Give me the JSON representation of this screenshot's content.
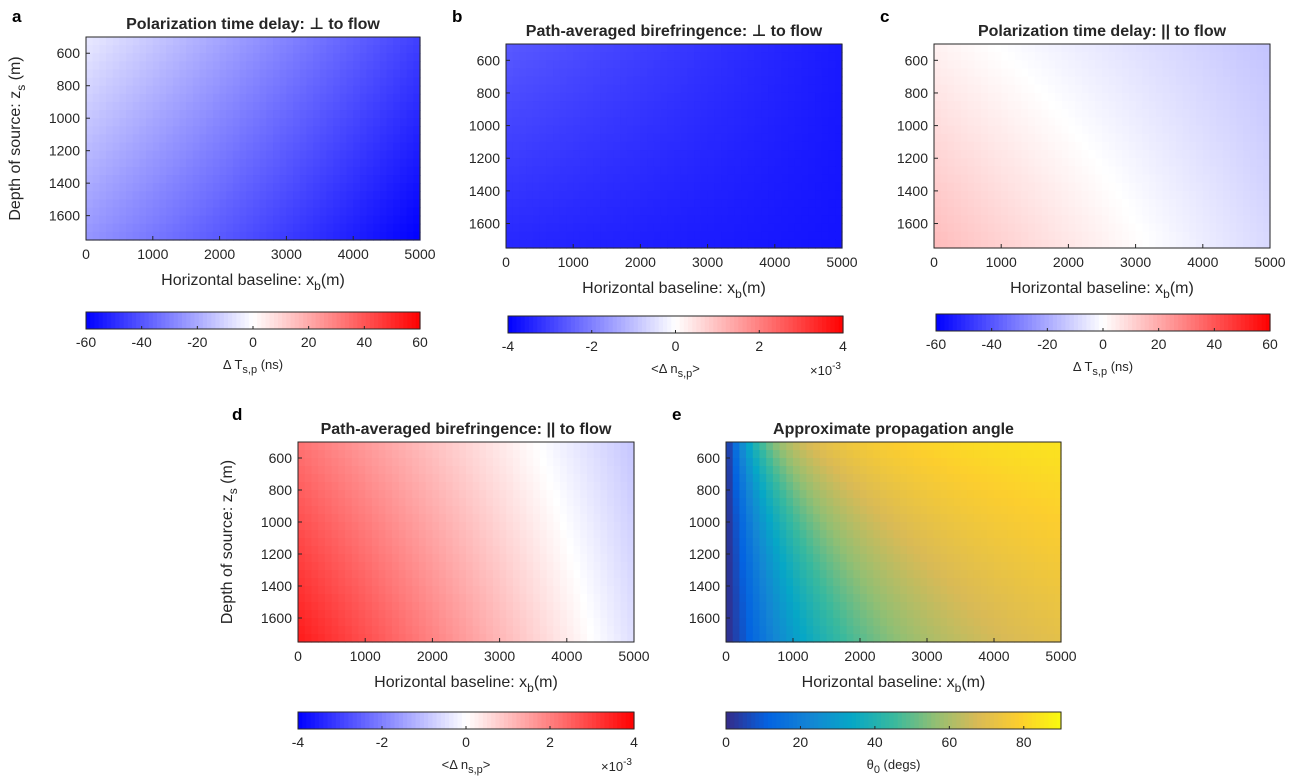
{
  "colors": {
    "diverging_neg": "#0000ff",
    "diverging_mid": "#ffffff",
    "diverging_pos": "#ff0000",
    "parula": [
      "#352a87",
      "#0363e1",
      "#1485d4",
      "#06a7c6",
      "#38b99e",
      "#92bf73",
      "#d9ba56",
      "#fcce2e",
      "#f9fb0e"
    ]
  },
  "chart_data": [
    {
      "panel": "a",
      "type": "heatmap",
      "title": "Polarization time delay: ⊥ to flow",
      "xlabel_main": "Horizontal baseline: x",
      "xlabel_sub": "b",
      "xlabel_tail": "(m)",
      "ylabel_main": "Depth of source: z",
      "ylabel_sub": "s",
      "ylabel_tail": " (m)",
      "xlim": [
        0,
        5000
      ],
      "ylim": [
        500,
        1750
      ],
      "xticks": [
        0,
        1000,
        2000,
        3000,
        4000,
        5000
      ],
      "yticks": [
        600,
        800,
        1000,
        1200,
        1400,
        1600
      ],
      "colormap": "diverging",
      "clim": [
        -60,
        60
      ],
      "cticks": [
        -60,
        -40,
        -20,
        0,
        20,
        40,
        60
      ],
      "colorbar_label": "Δ T",
      "colorbar_label_sub": "s,p",
      "colorbar_label_tail": " (ns)",
      "colorbar_exponent": "",
      "field": {
        "corner_values": {
          "x0_ytop": -5,
          "x5000_ytop": -45,
          "x0_ybottom": -25,
          "x5000_ybottom": -60
        }
      }
    },
    {
      "panel": "b",
      "type": "heatmap",
      "title": "Path-averaged birefringence: ⊥ to flow",
      "xlabel_main": "Horizontal baseline: x",
      "xlabel_sub": "b",
      "xlabel_tail": "(m)",
      "ylabel_main": "",
      "ylabel_sub": "",
      "ylabel_tail": "",
      "xlim": [
        0,
        5000
      ],
      "ylim": [
        500,
        1750
      ],
      "xticks": [
        0,
        1000,
        2000,
        3000,
        4000,
        5000
      ],
      "yticks": [
        600,
        800,
        1000,
        1200,
        1400,
        1600
      ],
      "colormap": "diverging",
      "clim": [
        -4,
        4
      ],
      "cticks": [
        -4,
        -2,
        0,
        2,
        4
      ],
      "colorbar_label": "<Δ n",
      "colorbar_label_sub": "s,p",
      "colorbar_label_tail": ">",
      "colorbar_exponent": "×10",
      "colorbar_exponent_sup": "-3",
      "field": {
        "corner_values": {
          "x0_ytop": -2.6,
          "x5000_ytop": -3.6,
          "x0_ybottom": -3.4,
          "x5000_ybottom": -3.7
        }
      }
    },
    {
      "panel": "c",
      "type": "heatmap",
      "title": "Polarization time delay: || to flow",
      "xlabel_main": "Horizontal baseline: x",
      "xlabel_sub": "b",
      "xlabel_tail": "(m)",
      "ylabel_main": "",
      "ylabel_sub": "",
      "ylabel_tail": "",
      "xlim": [
        0,
        5000
      ],
      "ylim": [
        500,
        1750
      ],
      "xticks": [
        0,
        1000,
        2000,
        3000,
        4000,
        5000
      ],
      "yticks": [
        600,
        800,
        1000,
        1200,
        1400,
        1600
      ],
      "colormap": "diverging",
      "clim": [
        -60,
        60
      ],
      "cticks": [
        -60,
        -40,
        -20,
        0,
        20,
        40,
        60
      ],
      "colorbar_label": "Δ T",
      "colorbar_label_sub": "s,p",
      "colorbar_label_tail": " (ns)",
      "colorbar_exponent": "",
      "field": {
        "corner_values": {
          "x0_ytop": 3,
          "x5000_ytop": -14,
          "x0_ybottom": 16,
          "x5000_ybottom": -9
        }
      }
    },
    {
      "panel": "d",
      "type": "heatmap",
      "title": "Path-averaged birefringence: || to flow",
      "xlabel_main": "Horizontal baseline: x",
      "xlabel_sub": "b",
      "xlabel_tail": "(m)",
      "ylabel_main": "Depth of source: z",
      "ylabel_sub": "s",
      "ylabel_tail": " (m)",
      "xlim": [
        0,
        5000
      ],
      "ylim": [
        500,
        1750
      ],
      "xticks": [
        0,
        1000,
        2000,
        3000,
        4000,
        5000
      ],
      "yticks": [
        600,
        800,
        1000,
        1200,
        1400,
        1600
      ],
      "colormap": "diverging",
      "clim": [
        -4,
        4
      ],
      "cticks": [
        -4,
        -2,
        0,
        2,
        4
      ],
      "colorbar_label": "<Δ n",
      "colorbar_label_sub": "s,p",
      "colorbar_label_tail": ">",
      "colorbar_exponent": "×10",
      "colorbar_exponent_sup": "-3",
      "field": {
        "corner_values": {
          "x0_ytop": 2.2,
          "x5000_ytop": -0.9,
          "x0_ybottom": 3.6,
          "x5000_ybottom": -0.5
        }
      }
    },
    {
      "panel": "e",
      "type": "heatmap",
      "title": "Approximate propagation angle",
      "xlabel_main": "Horizontal baseline: x",
      "xlabel_sub": "b",
      "xlabel_tail": "(m)",
      "ylabel_main": "",
      "ylabel_sub": "",
      "ylabel_tail": "",
      "xlim": [
        0,
        5000
      ],
      "ylim": [
        500,
        1750
      ],
      "xticks": [
        0,
        1000,
        2000,
        3000,
        4000,
        5000
      ],
      "yticks": [
        600,
        800,
        1000,
        1200,
        1400,
        1600
      ],
      "colormap": "parula",
      "clim": [
        0,
        90
      ],
      "cticks": [
        0,
        20,
        40,
        60,
        80
      ],
      "colorbar_label": "θ",
      "colorbar_label_sub": "0",
      "colorbar_label_tail": " (degs)",
      "colorbar_exponent": "",
      "field": {
        "formula": "atan(x_b / z_s) in degrees"
      }
    }
  ]
}
